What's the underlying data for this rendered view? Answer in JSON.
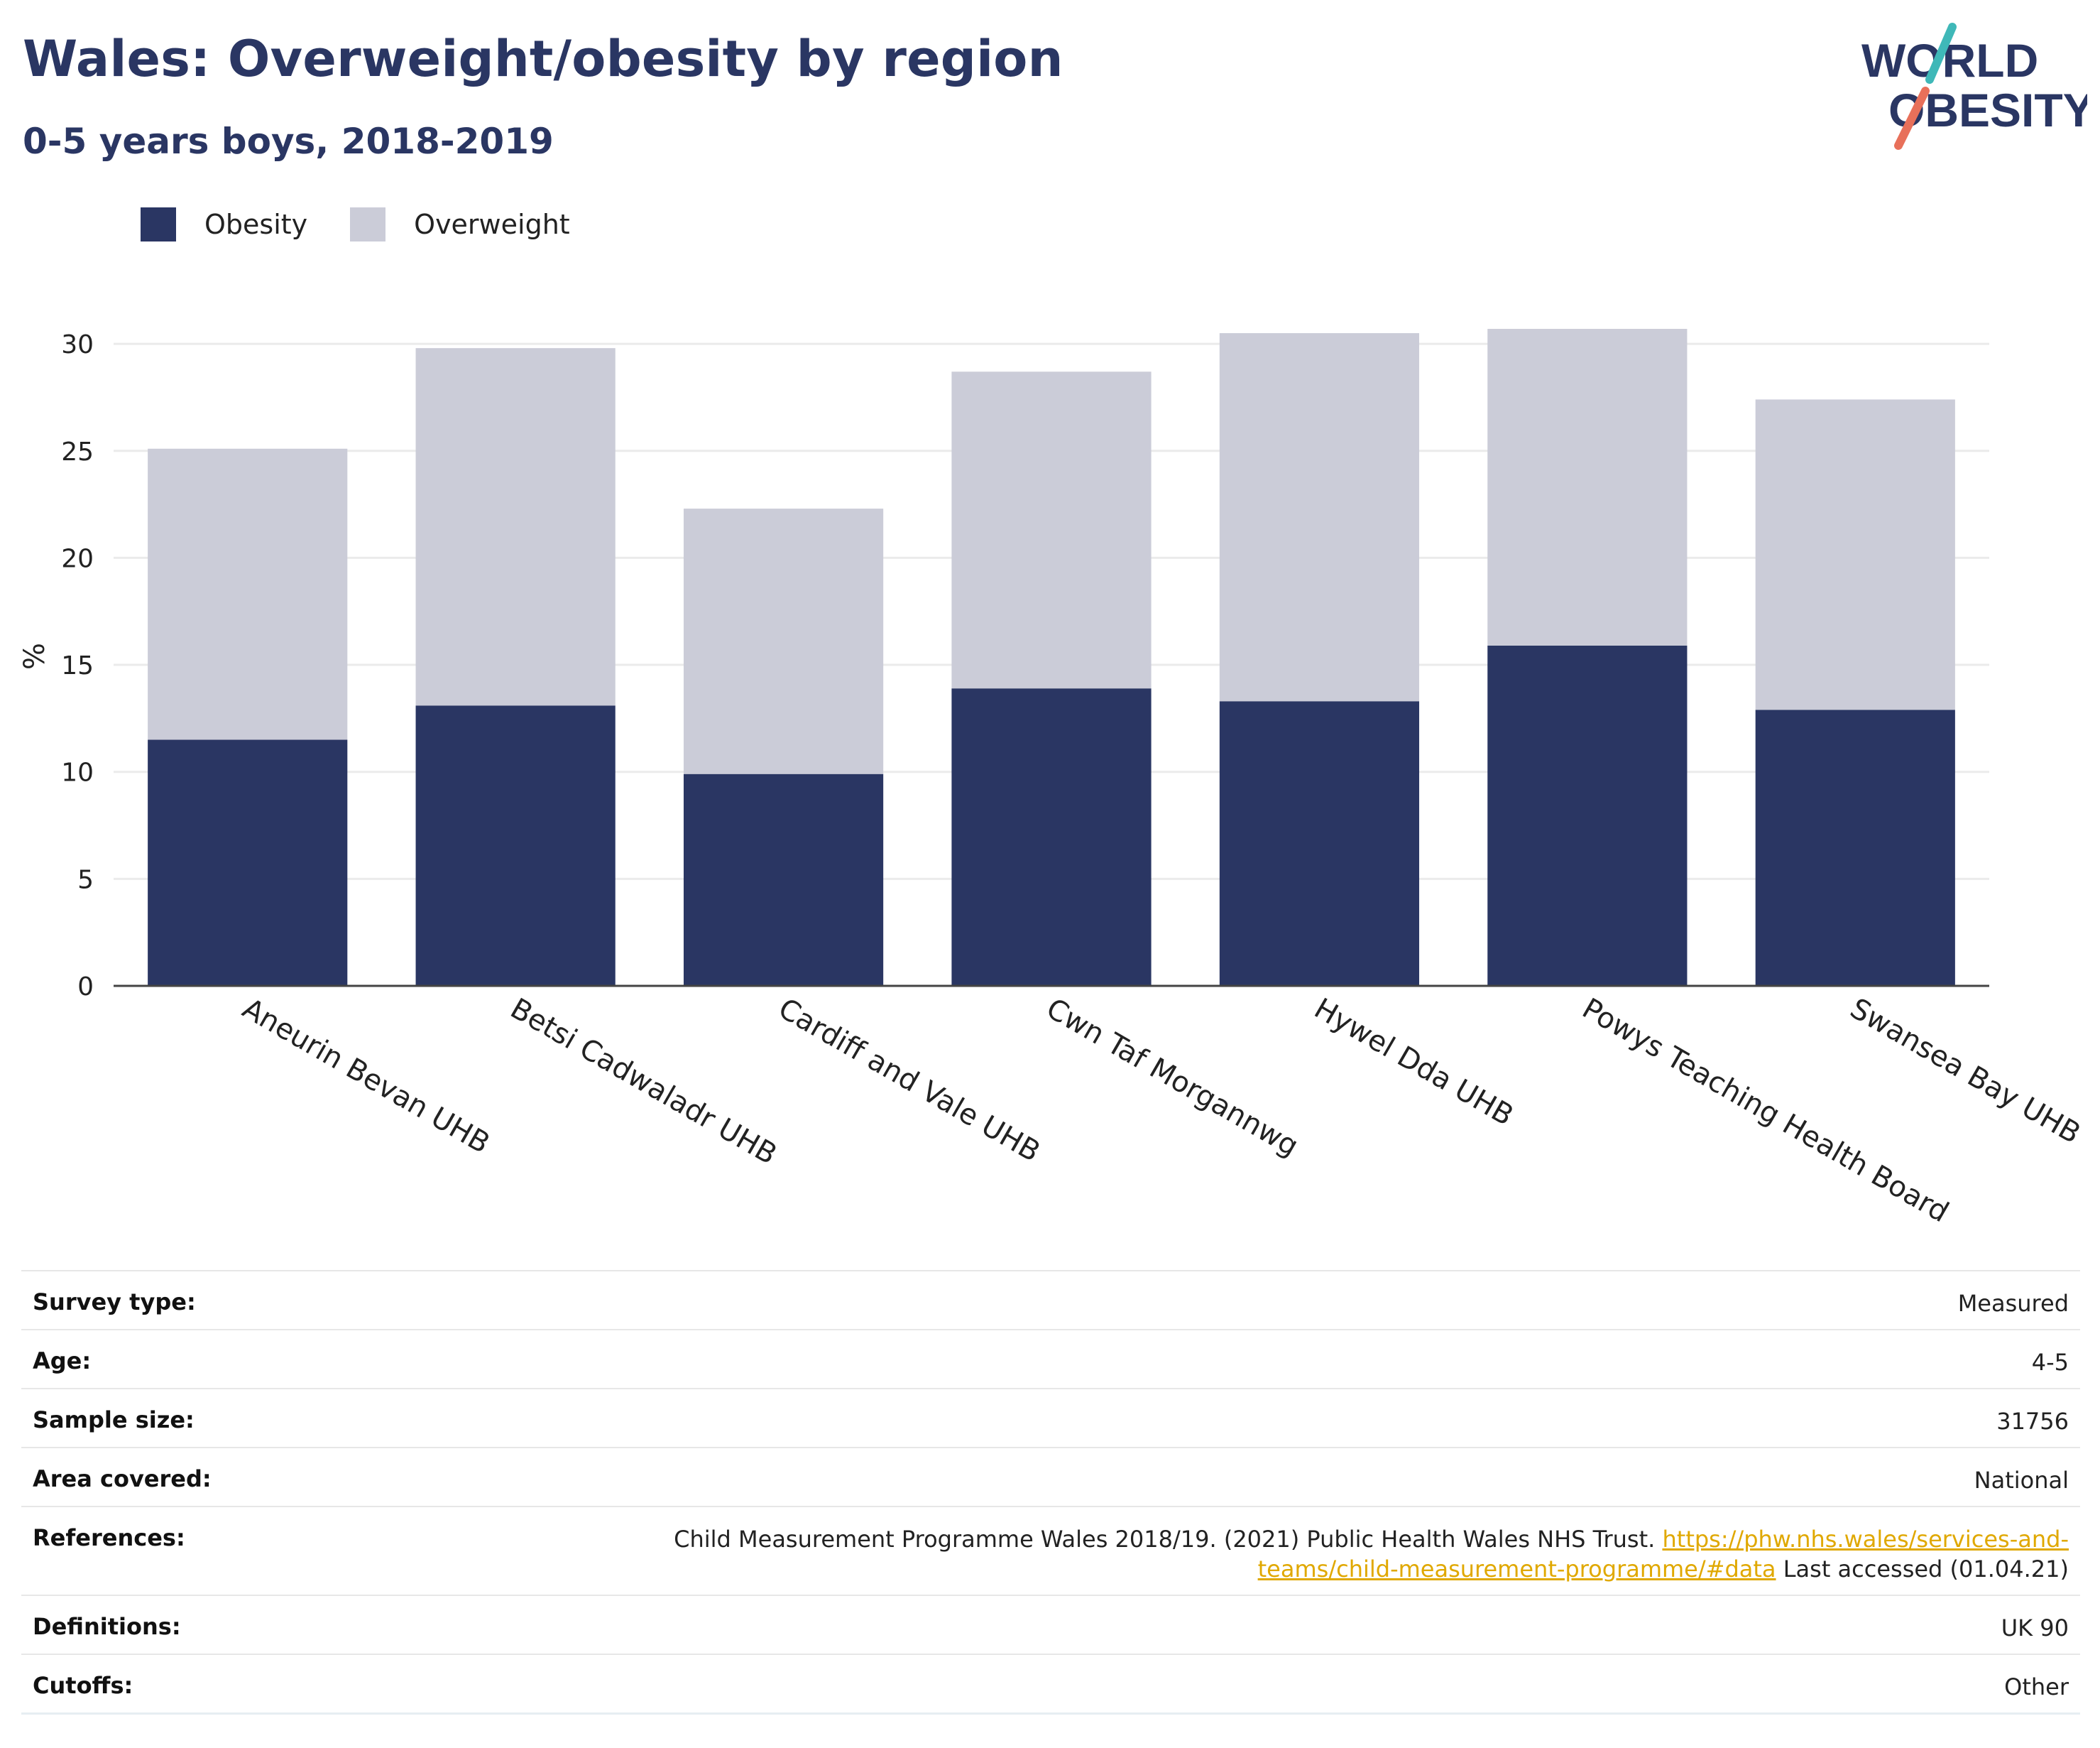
{
  "header": {
    "title": "Wales: Overweight/obesity by region",
    "subtitle": "0-5 years boys, 2018-2019",
    "logo_line1": "WORLD",
    "logo_line2": "OBESITY"
  },
  "colors": {
    "obesity": "#2a3663",
    "overweight": "#cbccd8",
    "title": "#2a3663",
    "link": "#e0a800",
    "logo_teal": "#3fb8b8",
    "logo_coral": "#e8705a"
  },
  "chart_data": {
    "type": "bar",
    "stacked": true,
    "title": "Wales: Overweight/obesity by region",
    "subtitle": "0-5 years boys, 2018-2019",
    "ylabel": "%",
    "xlabel": "",
    "ylim": [
      0,
      30
    ],
    "yticks": [
      0,
      5,
      10,
      15,
      20,
      25,
      30
    ],
    "yticks_labels": [
      "0",
      "5",
      "10",
      "15",
      "20",
      "25",
      "30"
    ],
    "grid": true,
    "legend_position": "top-left",
    "categories": [
      "Aneurin Bevan UHB",
      "Betsi Cadwaladr UHB",
      "Cardiff and Vale UHB",
      "Cwn Taf Morgannwg",
      "Hywel Dda UHB",
      "Powys Teaching Health Board",
      "Swansea Bay UHB"
    ],
    "series": [
      {
        "name": "Obesity",
        "values": [
          11.5,
          13.1,
          9.9,
          13.9,
          13.3,
          15.9,
          12.9
        ]
      },
      {
        "name": "Overweight",
        "values": [
          13.6,
          16.7,
          12.4,
          14.8,
          17.2,
          14.8,
          14.5
        ]
      }
    ]
  },
  "info": {
    "survey_type_label": "Survey type:",
    "survey_type_value": "Measured",
    "age_label": "Age:",
    "age_value": "4-5",
    "sample_size_label": "Sample size:",
    "sample_size_value": "31756",
    "area_label": "Area covered:",
    "area_value": "National",
    "references_label": "References:",
    "references_text": "Child Measurement Programme Wales 2018/19. (2021) Public Health Wales NHS Trust.",
    "references_link": "https://phw.nhs.wales/services-and-teams/child-measurement-programme/#data",
    "references_link_part1": "https://phw.nhs.wales/services-and-",
    "references_link_part2": "teams/child-measurement-programme/#data",
    "references_accessed": "Last accessed (01.04.21)",
    "definitions_label": "Definitions:",
    "definitions_value": "UK 90",
    "cutoffs_label": "Cutoffs:",
    "cutoffs_value": "Other"
  }
}
